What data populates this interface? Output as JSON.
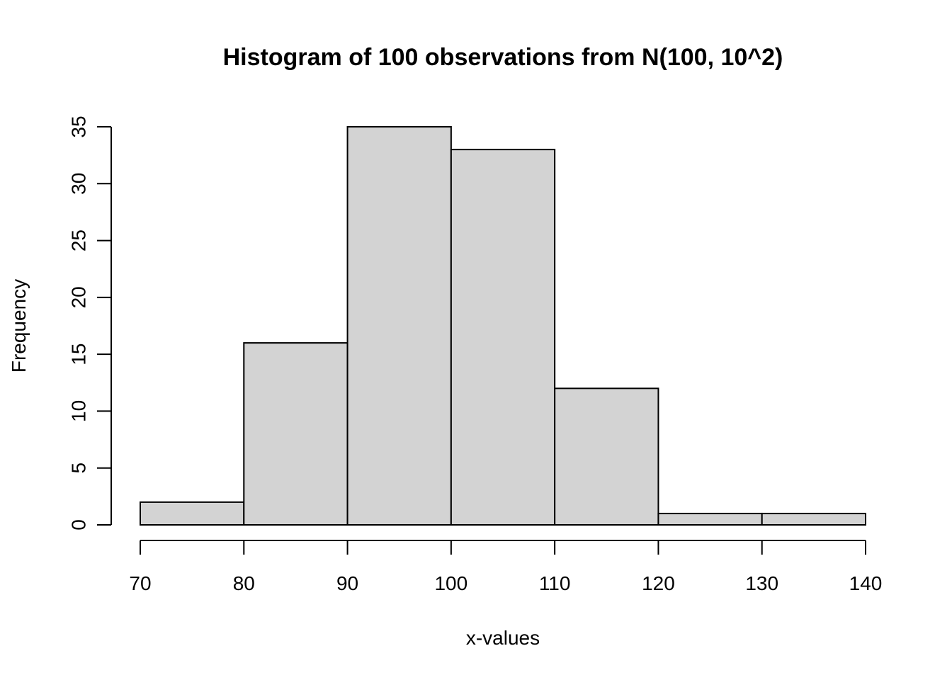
{
  "chart_data": {
    "type": "bar",
    "title": "Histogram of 100 observations from N(100, 10^2)",
    "xlabel": "x-values",
    "ylabel": "Frequency",
    "bins": [
      {
        "x0": 70,
        "x1": 80,
        "count": 2
      },
      {
        "x0": 80,
        "x1": 90,
        "count": 16
      },
      {
        "x0": 90,
        "x1": 100,
        "count": 35
      },
      {
        "x0": 100,
        "x1": 110,
        "count": 33
      },
      {
        "x0": 110,
        "x1": 120,
        "count": 12
      },
      {
        "x0": 120,
        "x1": 130,
        "count": 1
      },
      {
        "x0": 130,
        "x1": 140,
        "count": 1
      }
    ],
    "xlim": [
      70,
      140
    ],
    "ylim": [
      0,
      35
    ],
    "x_ticks": [
      70,
      80,
      90,
      100,
      110,
      120,
      130,
      140
    ],
    "y_ticks": [
      0,
      5,
      10,
      15,
      20,
      25,
      30,
      35
    ],
    "bar_color": "#d3d3d3",
    "grid": false
  }
}
